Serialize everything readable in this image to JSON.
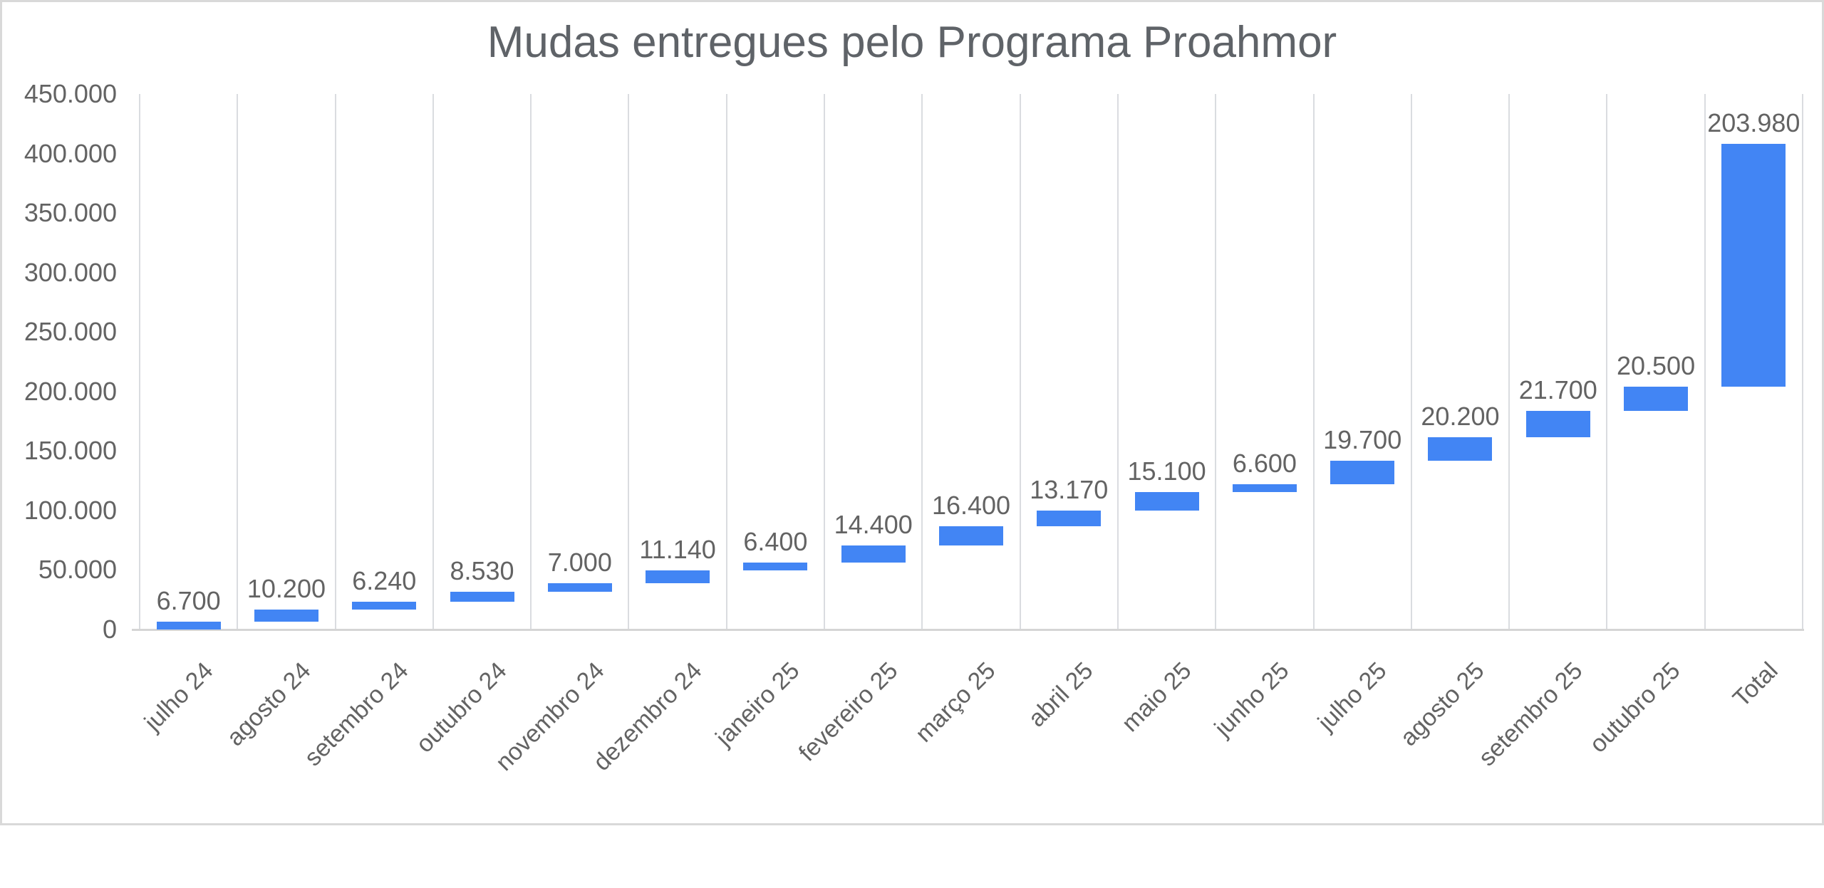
{
  "chart_data": {
    "type": "waterfall",
    "title": "Mudas entregues pelo Programa Proahmor",
    "categories": [
      "julho 24",
      "agosto 24",
      "setembro 24",
      "outubro 24",
      "novembro 24",
      "dezembro 24",
      "janeiro 25",
      "fevereiro 25",
      "março 25",
      "abril 25",
      "maio 25",
      "junho 25",
      "julho 25",
      "agosto 25",
      "setembro 25",
      "outubro 25",
      "Total"
    ],
    "values": [
      6700,
      10200,
      6240,
      8530,
      7000,
      11140,
      6400,
      14400,
      16400,
      13170,
      15100,
      6600,
      19700,
      20200,
      21700,
      20500,
      203980
    ],
    "value_labels": [
      "6.700",
      "10.200",
      "6.240",
      "8.530",
      "7.000",
      "11.140",
      "6.400",
      "14.400",
      "16.400",
      "13.170",
      "15.100",
      "6.600",
      "19.700",
      "20.200",
      "21.700",
      "20.500",
      "203.980"
    ],
    "bars_float_cumulative": true,
    "total_category": "Total",
    "total_value": 203980,
    "xlabel": "",
    "ylabel": "",
    "ylim": [
      0,
      450000
    ],
    "y_ticks": [
      0,
      50000,
      100000,
      150000,
      200000,
      250000,
      300000,
      350000,
      400000,
      450000
    ],
    "y_tick_labels": [
      "0",
      "50.000",
      "100.000",
      "150.000",
      "200.000",
      "250.000",
      "300.000",
      "350.000",
      "400.000",
      "450.000"
    ],
    "x_label_rotation_deg": -45,
    "grid": "vertical-category-separators-only",
    "legend": "none",
    "colors": {
      "bar": "#4285f4",
      "label_text": "#636363",
      "title_text": "#5f6368",
      "gridline": "#dadce0",
      "axis_line": "#d5d5d5",
      "frame_border": "#d9d9d9",
      "background": "#ffffff"
    }
  }
}
